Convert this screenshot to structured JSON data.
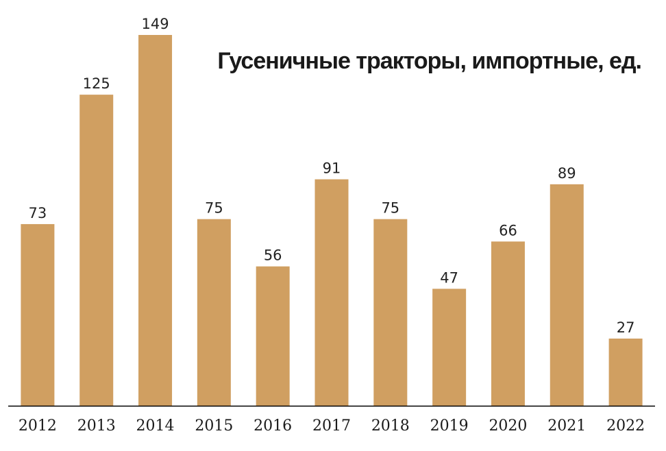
{
  "chart_data": {
    "type": "bar",
    "title": "Гусеничные тракторы, импортные, ед.",
    "xlabel": "",
    "ylabel": "",
    "categories": [
      "2012",
      "2013",
      "2014",
      "2015",
      "2016",
      "2017",
      "2018",
      "2019",
      "2020",
      "2021",
      "2022"
    ],
    "values": [
      73,
      125,
      149,
      75,
      56,
      91,
      75,
      47,
      66,
      89,
      27
    ],
    "ylim": [
      0,
      149
    ],
    "grid": false,
    "legend": "none",
    "data_labels": true,
    "colors": {
      "bar": "#D09F61",
      "axis": "#000000",
      "text": "#1a1a1a"
    }
  }
}
